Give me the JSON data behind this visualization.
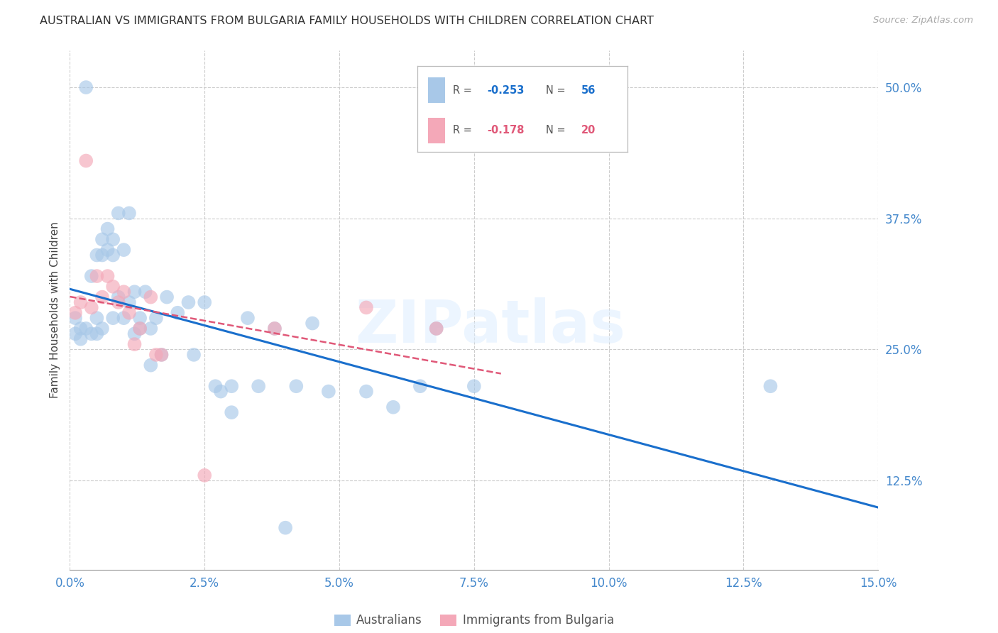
{
  "title": "AUSTRALIAN VS IMMIGRANTS FROM BULGARIA FAMILY HOUSEHOLDS WITH CHILDREN CORRELATION CHART",
  "source": "Source: ZipAtlas.com",
  "ylabel": "Family Households with Children",
  "xmin": 0.0,
  "xmax": 0.15,
  "ymin": 0.04,
  "ymax": 0.535,
  "watermark": "ZIPatlas",
  "aus_color": "#a8c8e8",
  "bul_color": "#f4a8b8",
  "line_aus_color": "#1a6fcc",
  "line_bul_color": "#e05878",
  "tick_label_color": "#4488cc",
  "background_color": "#ffffff",
  "grid_color": "#cccccc",
  "title_color": "#333333",
  "source_color": "#aaaaaa",
  "aus_x": [
    0.001,
    0.001,
    0.002,
    0.002,
    0.003,
    0.003,
    0.004,
    0.004,
    0.005,
    0.005,
    0.005,
    0.006,
    0.006,
    0.006,
    0.007,
    0.007,
    0.008,
    0.008,
    0.008,
    0.009,
    0.009,
    0.01,
    0.01,
    0.011,
    0.011,
    0.012,
    0.012,
    0.013,
    0.013,
    0.014,
    0.015,
    0.015,
    0.016,
    0.017,
    0.018,
    0.02,
    0.022,
    0.023,
    0.025,
    0.027,
    0.028,
    0.03,
    0.033,
    0.035,
    0.038,
    0.04,
    0.042,
    0.045,
    0.048,
    0.055,
    0.06,
    0.065,
    0.068,
    0.075,
    0.13,
    0.03
  ],
  "aus_y": [
    0.28,
    0.265,
    0.27,
    0.26,
    0.5,
    0.27,
    0.32,
    0.265,
    0.34,
    0.28,
    0.265,
    0.355,
    0.34,
    0.27,
    0.365,
    0.345,
    0.355,
    0.34,
    0.28,
    0.38,
    0.3,
    0.345,
    0.28,
    0.38,
    0.295,
    0.305,
    0.265,
    0.28,
    0.27,
    0.305,
    0.27,
    0.235,
    0.28,
    0.245,
    0.3,
    0.285,
    0.295,
    0.245,
    0.295,
    0.215,
    0.21,
    0.215,
    0.28,
    0.215,
    0.27,
    0.08,
    0.215,
    0.275,
    0.21,
    0.21,
    0.195,
    0.215,
    0.27,
    0.215,
    0.215,
    0.19
  ],
  "bul_x": [
    0.001,
    0.002,
    0.003,
    0.004,
    0.005,
    0.006,
    0.007,
    0.008,
    0.009,
    0.01,
    0.011,
    0.012,
    0.013,
    0.015,
    0.016,
    0.017,
    0.025,
    0.038,
    0.055,
    0.068
  ],
  "bul_y": [
    0.285,
    0.295,
    0.43,
    0.29,
    0.32,
    0.3,
    0.32,
    0.31,
    0.295,
    0.305,
    0.285,
    0.255,
    0.27,
    0.3,
    0.245,
    0.245,
    0.13,
    0.27,
    0.29,
    0.27
  ],
  "x_ticks": [
    0.0,
    0.025,
    0.05,
    0.075,
    0.1,
    0.125,
    0.15
  ],
  "x_labels": [
    "0.0%",
    "2.5%",
    "5.0%",
    "7.5%",
    "10.0%",
    "12.5%",
    "15.0%"
  ],
  "y_ticks": [
    0.125,
    0.25,
    0.375,
    0.5
  ],
  "y_labels": [
    "12.5%",
    "25.0%",
    "37.5%",
    "50.0%"
  ]
}
